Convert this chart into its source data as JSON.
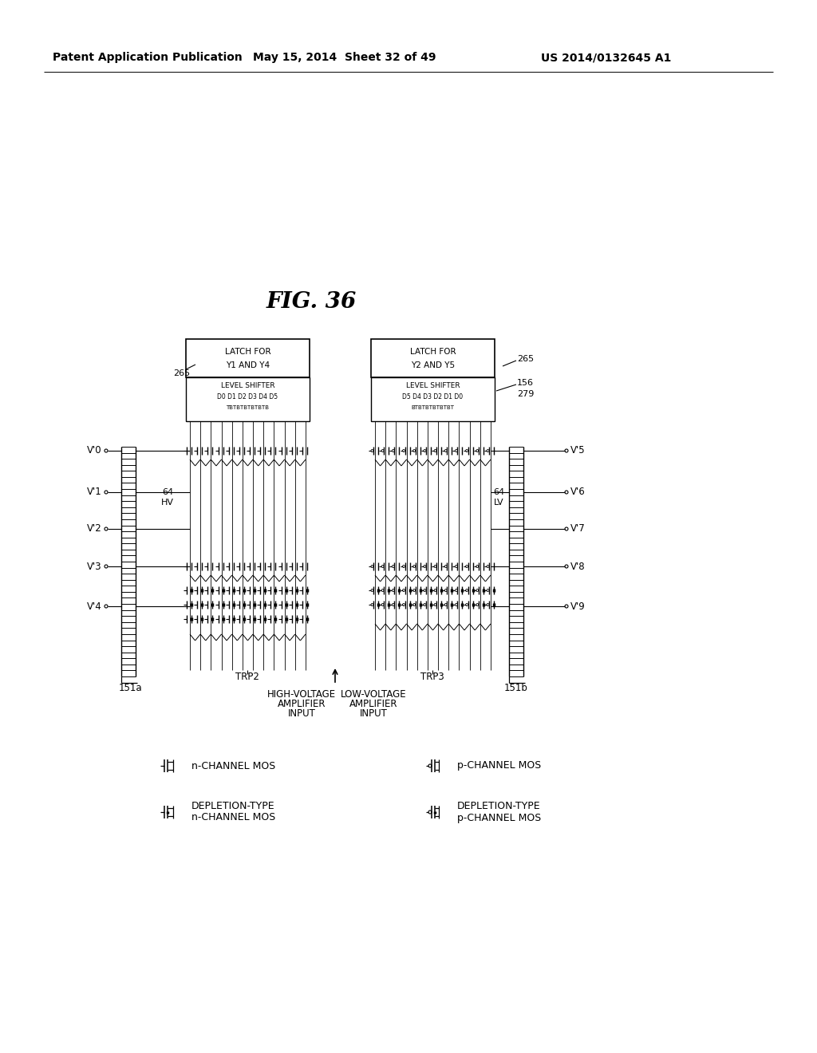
{
  "header_left": "Patent Application Publication",
  "header_middle": "May 15, 2014  Sheet 32 of 49",
  "header_right": "US 2014/0132645 A1",
  "fig_title": "FIG. 36",
  "bg_color": "#ffffff",
  "fg_color": "#000000",
  "latch_left_line1": "LATCH FOR",
  "latch_left_line2": "Y1 AND Y4",
  "latch_right_line1": "LATCH FOR",
  "latch_right_line2": "Y2 AND Y5",
  "ls_left_line1": "LEVEL SHIFTER",
  "ls_left_line2": "D0 D1 D2 D3 D4 D5",
  "ls_left_line3": "TBTBTBTBTBTB",
  "ls_right_line1": "LEVEL SHIFTER",
  "ls_right_line2": "D5 D4 D3 D2 D1 D0",
  "ls_right_line3": "BTBTBTBTBTBT",
  "ref_265_left": "265",
  "ref_265_right": "265",
  "ref_156": "156",
  "ref_279": "279",
  "ref_151a": "151a",
  "ref_151b": "151b",
  "ref_trp2": "TRP2",
  "ref_trp3": "TRP3",
  "hv_label_1": "64",
  "hv_label_2": "HV",
  "lv_label_1": "64",
  "lv_label_2": "LV",
  "left_inputs": [
    "V'0",
    "V'1",
    "V'2",
    "V'3",
    "V'4"
  ],
  "right_outputs": [
    "V'5",
    "V'6",
    "V'7",
    "V'8",
    "V'9"
  ],
  "hv_amp_1": "HIGH-VOLTAGE",
  "hv_amp_2": "AMPLIFIER",
  "hv_amp_3": "INPUT",
  "lv_amp_1": "LOW-VOLTAGE",
  "lv_amp_2": "AMPLIFIER",
  "lv_amp_3": "INPUT",
  "legend_n": "n-CHANNEL MOS",
  "legend_p": "p-CHANNEL MOS",
  "legend_dep_n_1": "DEPLETION-TYPE",
  "legend_dep_n_2": "n-CHANNEL MOS",
  "legend_dep_p_1": "DEPLETION-TYPE",
  "legend_dep_p_2": "p-CHANNEL MOS"
}
